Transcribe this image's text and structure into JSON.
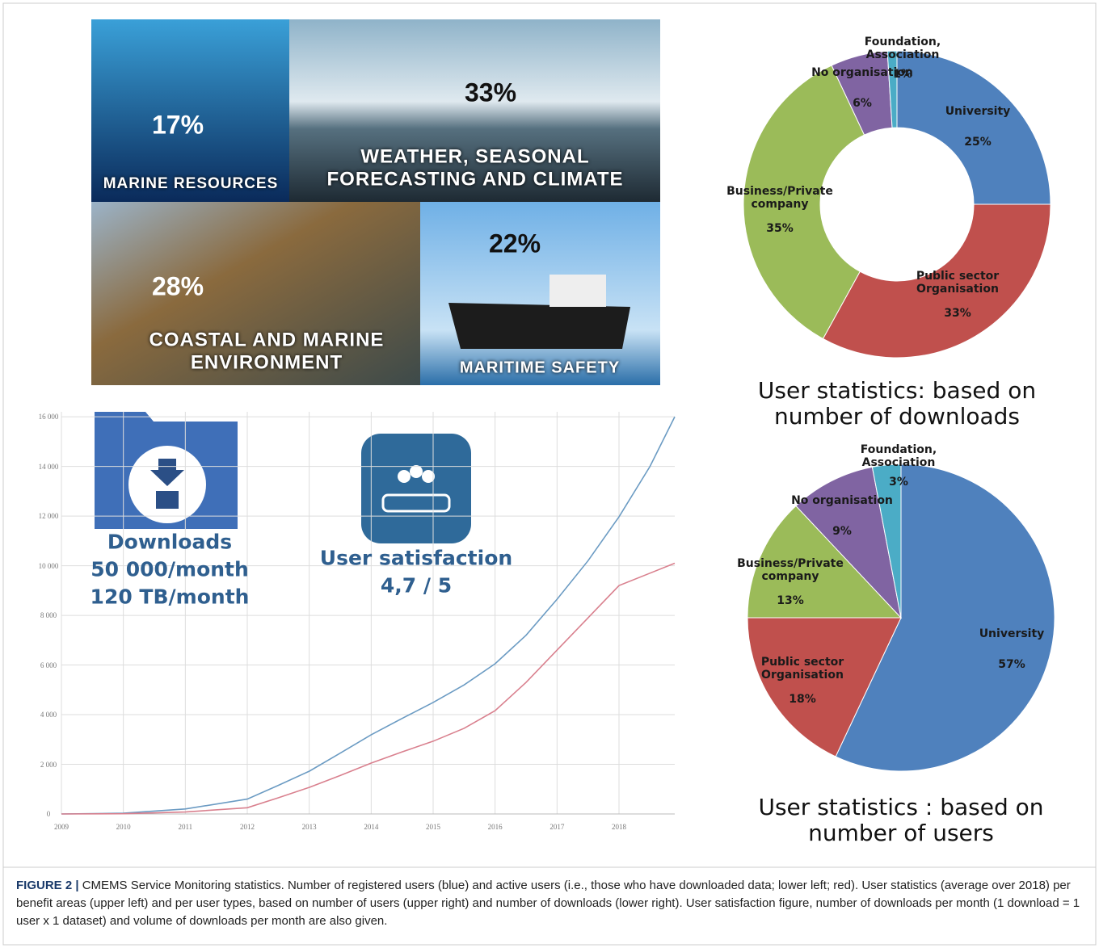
{
  "benefit_areas": [
    {
      "share": "17%",
      "label": "MARINE RESOURCES"
    },
    {
      "share": "33%",
      "label": "WEATHER, SEASONAL FORECASTING AND CLIMATE"
    },
    {
      "share": "28%",
      "label": "COASTAL AND MARINE ENVIRONMENT"
    },
    {
      "share": "22%",
      "label": "MARITIME SAFETY"
    }
  ],
  "downloads": {
    "title": "Downloads",
    "per_month": "50 000/month",
    "volume": "120 TB/month"
  },
  "satisfaction": {
    "title": "User satisfaction",
    "score": "4,7 / 5"
  },
  "chart_data": [
    {
      "type": "line",
      "x": [
        2009,
        2010,
        2011,
        2012,
        2012.5,
        2013,
        2013.5,
        2014,
        2014.5,
        2015,
        2015.5,
        2016,
        2016.5,
        2017,
        2017.5,
        2018,
        2018.5,
        2018.9
      ],
      "series": [
        {
          "color": "#6b9bc3",
          "values": [
            0,
            30,
            200,
            600,
            1150,
            1720,
            2450,
            3190,
            3850,
            4490,
            5200,
            6050,
            7200,
            8650,
            10200,
            11970,
            14000,
            16000
          ]
        },
        {
          "color": "#d9808e",
          "values": [
            0,
            10,
            80,
            250,
            650,
            1070,
            1550,
            2050,
            2500,
            2930,
            3450,
            4160,
            5300,
            6600,
            7900,
            9200,
            9700,
            10100
          ]
        }
      ],
      "xlim": [
        2009,
        2018.9
      ],
      "xticks": [
        2009,
        2010,
        2011,
        2012,
        2013,
        2014,
        2015,
        2016,
        2017,
        2018
      ],
      "ylim": [
        0,
        16200
      ],
      "yticks": [
        0,
        {
          "value": 2000,
          "label": "2 000"
        },
        {
          "value": 4000,
          "label": "4 000"
        },
        {
          "value": 6000,
          "label": "6 000"
        },
        {
          "value": 8000,
          "label": "8 000"
        },
        {
          "value": 10000,
          "label": "10 000"
        },
        {
          "value": 12000,
          "label": "12 000"
        },
        {
          "value": 14000,
          "label": "14 000"
        },
        {
          "value": 16000,
          "label": "16 000"
        }
      ],
      "grid": true
    },
    {
      "type": "donut",
      "title": "User statistics:  based on number of downloads",
      "categories": [
        "University",
        "Public sector Organisation",
        "Business/Private company",
        "No organisation",
        "Foundation, Association"
      ],
      "values": [
        25,
        33,
        35,
        6,
        1
      ],
      "value_labels": [
        "25%",
        "33%",
        "35%",
        "6%",
        "1%"
      ],
      "colors": [
        "#4f81bd",
        "#c0504d",
        "#9bbb59",
        "#8064a2",
        "#4bacc6"
      ]
    },
    {
      "type": "pie",
      "title": "User statistics : based on number of users",
      "categories": [
        "University",
        "Public sector Organisation",
        "Business/Private company",
        "No organisation",
        "Foundation, Association"
      ],
      "values": [
        57,
        18,
        13,
        9,
        3
      ],
      "value_labels": [
        "57%",
        "18%",
        "13%",
        "9%",
        "3%"
      ],
      "colors": [
        "#4f81bd",
        "#c0504d",
        "#9bbb59",
        "#8064a2",
        "#4bacc6"
      ]
    }
  ],
  "caption": {
    "label": "FIGURE 2 |",
    "text": "CMEMS Service Monitoring statistics. Number of registered users (blue) and active users (i.e., those who have downloaded data; lower left; red). User statistics (average over 2018) per benefit areas (upper left) and per user types, based on number of users (upper right) and number of downloads (lower right). User satisfaction figure, number of downloads per month (1 download = 1 user x 1 dataset) and volume of downloads per month are also given."
  }
}
